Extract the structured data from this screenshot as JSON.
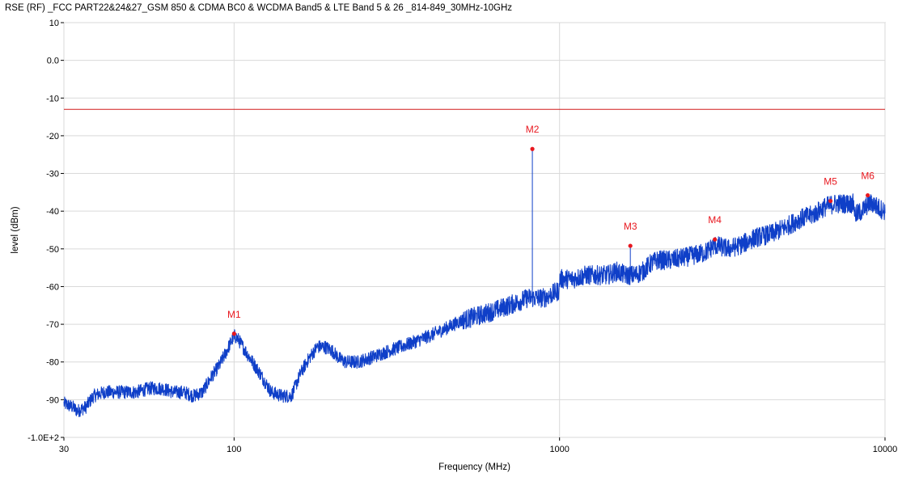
{
  "chart_data": {
    "type": "line",
    "title": "RSE (RF)  _FCC PART22&24&27_GSM 850 & CDMA BC0 & WCDMA Band5 & LTE Band 5 & 26 _814-849_30MHz-10GHz",
    "xlabel": "Frequency (MHz)",
    "ylabel": "level (dBm)",
    "x_scale": "log",
    "xlim": [
      30,
      10000
    ],
    "ylim": [
      -100,
      10
    ],
    "grid": true,
    "x_ticks": [
      30,
      100,
      1000,
      10000
    ],
    "x_tick_labels": [
      "30",
      "100",
      "1000",
      "10000"
    ],
    "y_ticks": [
      10,
      0,
      -10,
      -20,
      -30,
      -40,
      -50,
      -60,
      -70,
      -80,
      -90,
      -100
    ],
    "y_tick_labels": [
      "10",
      "0.0",
      "-10",
      "-20",
      "-30",
      "-40",
      "-50",
      "-60",
      "-70",
      "-80",
      "-90",
      "-1.0E+2"
    ],
    "limit_line": {
      "y": -13,
      "color": "#d11a1a"
    },
    "trace_color": "#0f3fc8",
    "marker_color": "#e8181f",
    "series": [
      {
        "x": [
          30,
          32,
          33,
          35,
          37,
          40,
          45,
          50,
          55,
          60,
          65,
          70,
          75,
          80,
          85,
          90,
          95,
          100,
          103,
          110,
          120,
          130,
          140,
          150,
          155,
          160,
          170,
          180,
          190,
          200,
          210,
          220,
          240,
          260,
          280,
          300,
          350,
          400,
          450,
          500,
          550,
          600,
          650,
          700,
          750,
          800,
          850,
          900,
          950,
          999,
          1000,
          1050,
          1100,
          1200,
          1300,
          1400,
          1500,
          1600,
          1700,
          1800,
          1900,
          2000,
          2200,
          2500,
          2800,
          3000,
          3300,
          3600,
          4000,
          4500,
          5000,
          5500,
          6000,
          6500,
          7000,
          7500,
          8000,
          8100,
          8500,
          8900,
          9200,
          9500,
          10000
        ],
        "y": [
          -91,
          -92,
          -93,
          -92,
          -89,
          -88,
          -88,
          -88,
          -87,
          -87,
          -88,
          -88,
          -89,
          -88,
          -84,
          -81,
          -77,
          -73,
          -74,
          -78,
          -83,
          -88,
          -89,
          -89,
          -86,
          -83,
          -79,
          -76,
          -76,
          -77,
          -79,
          -80,
          -80,
          -79,
          -78,
          -77,
          -75,
          -73,
          -71,
          -69,
          -68,
          -67,
          -66,
          -65,
          -64,
          -63,
          -63,
          -63,
          -62,
          -61,
          -58,
          -58,
          -58,
          -57,
          -57,
          -57,
          -56,
          -57,
          -57,
          -56,
          -54,
          -53,
          -53,
          -52,
          -51,
          -49,
          -50,
          -49,
          -47,
          -46,
          -44,
          -42,
          -41,
          -39,
          -38,
          -38,
          -38,
          -41,
          -40,
          -38,
          -38,
          -39,
          -40
        ]
      }
    ],
    "markers": [
      {
        "label": "M1",
        "x": 100,
        "y": -72.5
      },
      {
        "label": "M2",
        "x": 825,
        "y": -23.5
      },
      {
        "label": "M3",
        "x": 1650,
        "y": -49.2
      },
      {
        "label": "M4",
        "x": 3000,
        "y": -47.5
      },
      {
        "label": "M5",
        "x": 6800,
        "y": -37.3
      },
      {
        "label": "M6",
        "x": 8850,
        "y": -35.8
      }
    ]
  }
}
